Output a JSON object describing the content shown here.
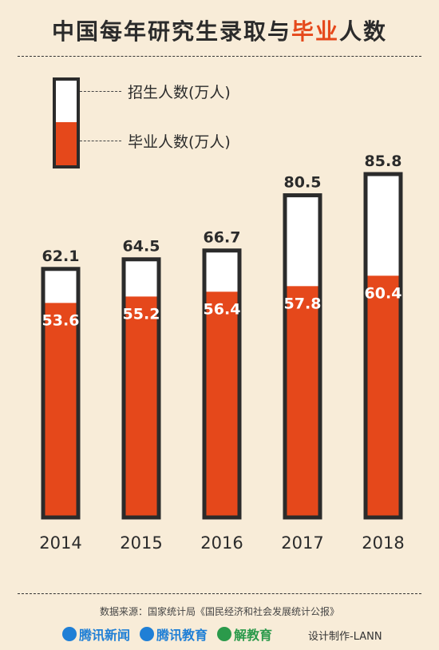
{
  "title": {
    "part1": "中国每年研究生录取与",
    "highlight": "毕业",
    "part2": "人数"
  },
  "legend": {
    "enroll_label": "招生人数(万人)",
    "grad_label": "毕业人数(万人)"
  },
  "colors": {
    "background": "#f8ecd8",
    "accent": "#e5481b",
    "outline": "#2b2b2b",
    "bar_empty": "#ffffff"
  },
  "chart_data": {
    "type": "bar",
    "categories": [
      "2014",
      "2015",
      "2016",
      "2017",
      "2018"
    ],
    "series": [
      {
        "name": "招生人数(万人)",
        "values": [
          62.1,
          64.5,
          66.7,
          80.5,
          85.8
        ]
      },
      {
        "name": "毕业人数(万人)",
        "values": [
          53.6,
          55.2,
          56.4,
          57.8,
          60.4
        ]
      }
    ],
    "title": "中国每年研究生录取与毕业人数",
    "ylim": [
      0,
      85.8
    ],
    "grid": false,
    "legend_position": "top-left"
  },
  "footer": {
    "source": "数据来源：国家统计局《国民经济和社会发展统计公报》",
    "logos": [
      {
        "text": "腾讯新闻",
        "color": "#1f7fd6",
        "icon": "tencent-news-icon"
      },
      {
        "text": "腾讯教育",
        "color": "#1f7fd6",
        "icon": "tencent-edu-icon"
      },
      {
        "text": "解教育",
        "color": "#2b9a4b",
        "icon": "jie-edu-icon"
      }
    ],
    "designer": "设计制作-LANN"
  }
}
